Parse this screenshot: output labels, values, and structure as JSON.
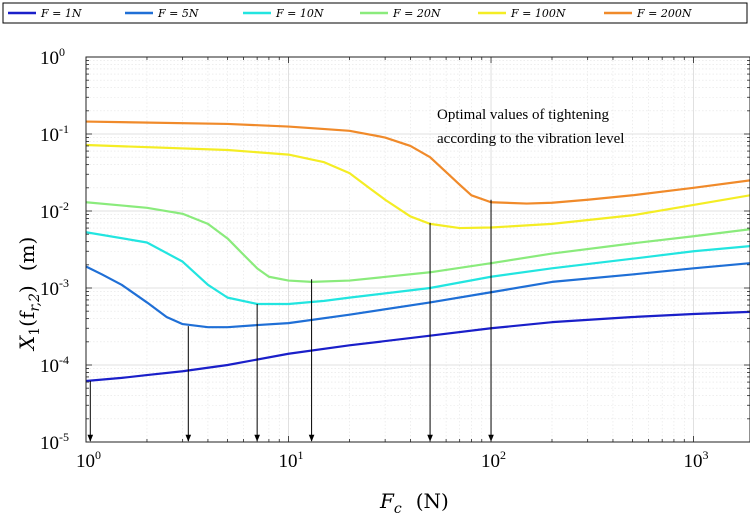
{
  "chart_data": {
    "type": "line",
    "xscale": "log",
    "yscale": "log",
    "xlim": [
      1,
      1900
    ],
    "ylim": [
      1e-05,
      1
    ],
    "grid": true,
    "legend_position": "top",
    "xlabel": "F_c (N)",
    "ylabel": "X_1(f_{r,2}) (m)",
    "xlabel_main": "F",
    "xlabel_sub": "c",
    "xlabel_unit": "(N)",
    "ylabel_main": "X",
    "ylabel_sub": "1",
    "ylabel_arg": "(f",
    "ylabel_arg_sub": "r,2",
    "ylabel_close": ")",
    "ylabel_unit": "(m)",
    "x_ticks": [
      {
        "value": 1,
        "base": "10",
        "exp": "0"
      },
      {
        "value": 10,
        "base": "10",
        "exp": "1"
      },
      {
        "value": 100,
        "base": "10",
        "exp": "2"
      },
      {
        "value": 1000,
        "base": "10",
        "exp": "3"
      }
    ],
    "y_ticks": [
      {
        "value": 1e-05,
        "base": "10",
        "exp": "-5"
      },
      {
        "value": 0.0001,
        "base": "10",
        "exp": "-4"
      },
      {
        "value": 0.001,
        "base": "10",
        "exp": "-3"
      },
      {
        "value": 0.01,
        "base": "10",
        "exp": "-2"
      },
      {
        "value": 0.1,
        "base": "10",
        "exp": "-1"
      },
      {
        "value": 1,
        "base": "10",
        "exp": "0"
      }
    ],
    "series": [
      {
        "name": "F = 1N",
        "color": "#1a1fc9",
        "x": [
          1,
          1.5,
          2,
          3,
          5,
          10,
          20,
          50,
          100,
          200,
          500,
          1000,
          1900
        ],
        "y": [
          6.2e-05,
          6.8e-05,
          7.4e-05,
          8.3e-05,
          0.0001,
          0.00014,
          0.00018,
          0.00024,
          0.0003,
          0.00036,
          0.00042,
          0.00046,
          0.00049
        ]
      },
      {
        "name": "F = 5N",
        "color": "#1f6fd6",
        "x": [
          1,
          1.2,
          1.5,
          2,
          2.5,
          3,
          4,
          5,
          7,
          10,
          20,
          50,
          100,
          200,
          500,
          1000,
          1900
        ],
        "y": [
          0.0019,
          0.0015,
          0.0011,
          0.00065,
          0.00042,
          0.00034,
          0.00031,
          0.00031,
          0.00033,
          0.00035,
          0.00045,
          0.00065,
          0.00088,
          0.0012,
          0.0015,
          0.0018,
          0.0021
        ]
      },
      {
        "name": "F = 10N",
        "color": "#22e5e0",
        "x": [
          1,
          2,
          3,
          4,
          5,
          7,
          10,
          15,
          20,
          50,
          100,
          200,
          500,
          1000,
          1900
        ],
        "y": [
          0.0053,
          0.0039,
          0.0022,
          0.0011,
          0.00075,
          0.00062,
          0.00062,
          0.00068,
          0.00075,
          0.001,
          0.0014,
          0.0018,
          0.0024,
          0.003,
          0.0035
        ]
      },
      {
        "name": "F = 20N",
        "color": "#8aeb7c",
        "x": [
          1,
          2,
          3,
          4,
          5,
          6,
          7,
          8,
          10,
          13,
          20,
          50,
          100,
          200,
          500,
          1000,
          1900
        ],
        "y": [
          0.013,
          0.011,
          0.0092,
          0.0068,
          0.0044,
          0.0027,
          0.0018,
          0.0014,
          0.00125,
          0.0012,
          0.00125,
          0.0016,
          0.0021,
          0.0028,
          0.0038,
          0.0047,
          0.0058
        ]
      },
      {
        "name": "F = 100N",
        "color": "#f4ed24",
        "x": [
          1,
          5,
          10,
          15,
          20,
          25,
          30,
          40,
          50,
          70,
          100,
          200,
          500,
          1000,
          1900
        ],
        "y": [
          0.072,
          0.062,
          0.054,
          0.043,
          0.031,
          0.02,
          0.014,
          0.0085,
          0.0068,
          0.006,
          0.0061,
          0.0068,
          0.0088,
          0.012,
          0.016
        ]
      },
      {
        "name": "F = 200N",
        "color": "#f08a2a",
        "x": [
          1,
          5,
          10,
          20,
          30,
          40,
          50,
          60,
          70,
          80,
          100,
          150,
          200,
          300,
          500,
          1000,
          1900
        ],
        "y": [
          0.145,
          0.135,
          0.125,
          0.11,
          0.09,
          0.07,
          0.05,
          0.032,
          0.022,
          0.016,
          0.013,
          0.0125,
          0.0128,
          0.014,
          0.016,
          0.02,
          0.025
        ]
      }
    ],
    "optimal_points": [
      {
        "x": 1.05,
        "y": 6.2e-05
      },
      {
        "x": 3.2,
        "y": 0.00032
      },
      {
        "x": 7,
        "y": 0.00062
      },
      {
        "x": 13,
        "y": 0.0013
      },
      {
        "x": 50,
        "y": 0.007
      },
      {
        "x": 100,
        "y": 0.014
      }
    ],
    "annotation": {
      "line1": "Optimal values of tightening",
      "line2": "according to the vibration level"
    }
  }
}
